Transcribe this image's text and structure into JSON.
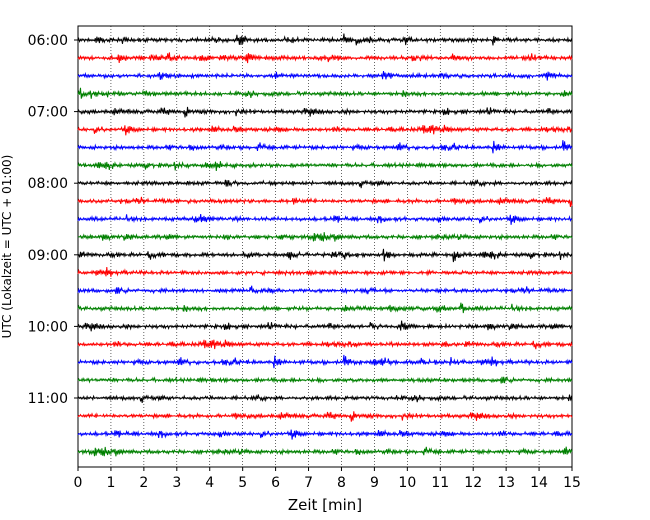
{
  "chart_data": {
    "type": "line",
    "title": "",
    "xlabel": "Zeit  [min]",
    "ylabel": "UTC (Lokalzeit = UTC + 01:00)",
    "xlim": [
      0,
      15
    ],
    "x_ticks": [
      "0",
      "1",
      "2",
      "3",
      "4",
      "5",
      "6",
      "7",
      "8",
      "9",
      "10",
      "11",
      "12",
      "13",
      "14",
      "15"
    ],
    "y_ticks": [
      "06:00",
      "07:00",
      "08:00",
      "09:00",
      "10:00",
      "11:00"
    ],
    "row_start": "06:00",
    "row_interval_minutes": 15,
    "row_count": 24,
    "trace_colors": [
      "#000000",
      "#ff0000",
      "#0000ff",
      "#008000"
    ],
    "grid": {
      "vertical": true,
      "style": "dotted"
    },
    "legend": "none"
  }
}
